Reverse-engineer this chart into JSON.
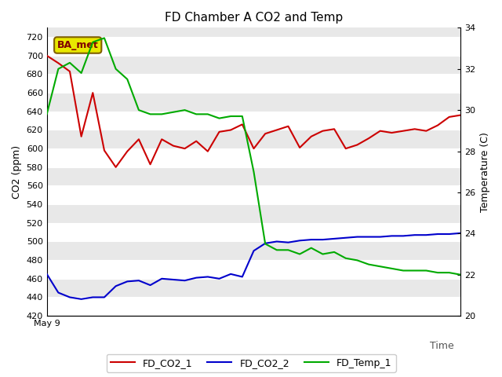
{
  "title": "FD Chamber A CO2 and Temp",
  "xlabel": "Time",
  "ylabel_left": "CO2 (ppm)",
  "ylabel_right": "Temperature (C)",
  "annotation_text": "BA_met",
  "ylim_left": [
    420,
    730
  ],
  "ylim_right": [
    20,
    34
  ],
  "yticks_left": [
    420,
    440,
    460,
    480,
    500,
    520,
    540,
    560,
    580,
    600,
    620,
    640,
    660,
    680,
    700,
    720
  ],
  "yticks_right": [
    20,
    22,
    24,
    26,
    28,
    30,
    32,
    34
  ],
  "x_label_start": "May 9",
  "bg_color": "#e8e8e8",
  "grid_color": "#ffffff",
  "co2_1_color": "#cc0000",
  "co2_2_color": "#0000cc",
  "temp_1_color": "#00aa00",
  "legend_entries": [
    "FD_CO2_1",
    "FD_CO2_2",
    "FD_Temp_1"
  ],
  "fd_co2_1_x": [
    0,
    1,
    2,
    3,
    4,
    5,
    6,
    7,
    8,
    9,
    10,
    11,
    12,
    13,
    14,
    15,
    16,
    17,
    18,
    19,
    20,
    21,
    22,
    23,
    24,
    25,
    26,
    27,
    28,
    29,
    30,
    31,
    32,
    33,
    34,
    35,
    36
  ],
  "fd_co2_1_y": [
    700,
    692,
    683,
    613,
    660,
    598,
    580,
    597,
    610,
    583,
    610,
    603,
    600,
    608,
    597,
    618,
    620,
    626,
    600,
    616,
    620,
    624,
    601,
    613,
    619,
    621,
    600,
    604,
    611,
    619,
    617,
    619,
    621,
    619,
    625,
    634,
    636
  ],
  "fd_co2_2_x": [
    0,
    1,
    2,
    3,
    4,
    5,
    6,
    7,
    8,
    9,
    10,
    11,
    12,
    13,
    14,
    15,
    16,
    17,
    18,
    19,
    20,
    21,
    22,
    23,
    24,
    25,
    26,
    27,
    28,
    29,
    30,
    31,
    32,
    33,
    34,
    35,
    36
  ],
  "fd_co2_2_y": [
    465,
    445,
    440,
    438,
    440,
    440,
    452,
    457,
    458,
    453,
    460,
    459,
    458,
    461,
    462,
    460,
    465,
    462,
    490,
    498,
    500,
    499,
    501,
    502,
    502,
    503,
    504,
    505,
    505,
    505,
    506,
    506,
    507,
    507,
    508,
    508,
    509
  ],
  "fd_temp_1_x": [
    0,
    1,
    2,
    3,
    4,
    5,
    6,
    7,
    8,
    9,
    10,
    11,
    12,
    13,
    14,
    15,
    16,
    17,
    18,
    19,
    20,
    21,
    22,
    23,
    24,
    25,
    26,
    27,
    28,
    29,
    30,
    31,
    32,
    33,
    34,
    35,
    36
  ],
  "fd_temp_1_y": [
    29.8,
    32.0,
    32.3,
    31.8,
    33.3,
    33.5,
    32.0,
    31.5,
    30.0,
    29.8,
    29.8,
    29.9,
    30.0,
    29.8,
    29.8,
    29.6,
    29.7,
    29.7,
    27.0,
    23.5,
    23.2,
    23.2,
    23.0,
    23.3,
    23.0,
    23.1,
    22.8,
    22.7,
    22.5,
    22.4,
    22.3,
    22.2,
    22.2,
    22.2,
    22.1,
    22.1,
    22.0
  ]
}
